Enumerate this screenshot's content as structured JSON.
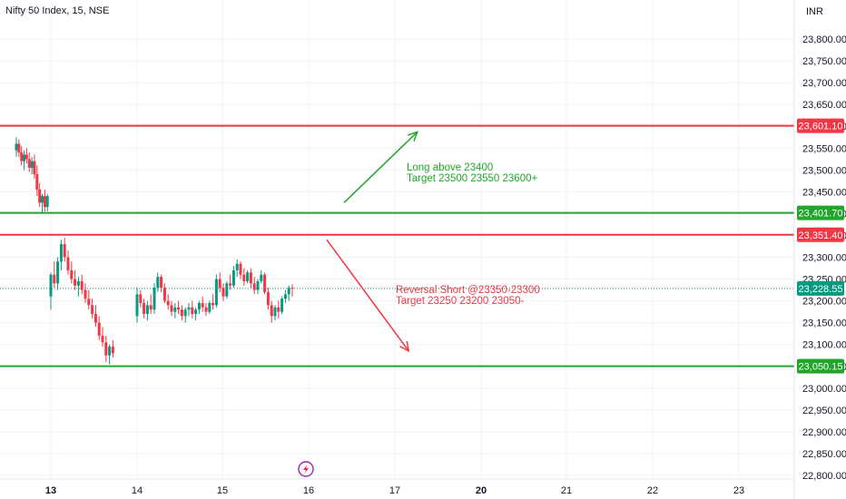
{
  "header": {
    "title": "Nifty 50 Index, 15, NSE",
    "currency": "INR"
  },
  "colors": {
    "up": "#089981",
    "down": "#f23645",
    "level_red": "#f23645",
    "level_green": "#22a52b",
    "grid": "#f0f3fa",
    "axis_text": "#131722"
  },
  "icons": {
    "bottom_marker": "lightning-bolt-icon"
  },
  "chart_data": {
    "type": "candlestick",
    "y_axis": {
      "range": [
        22780,
        23850
      ],
      "ticks": [
        "23,800.00",
        "23,750.00",
        "23,700.00",
        "23,650.00",
        "23,600.00",
        "23,550.00",
        "23,500.00",
        "23,450.00",
        "23,400.00",
        "23,350.00",
        "23,300.00",
        "23,250.00",
        "23,200.00",
        "23,150.00",
        "23,100.00",
        "23,050.00",
        "23,000.00",
        "22,950.00",
        "22,900.00",
        "22,850.00",
        "22,800.00"
      ],
      "tick_values": [
        23800,
        23750,
        23700,
        23650,
        23600,
        23550,
        23500,
        23450,
        23400,
        23350,
        23300,
        23250,
        23200,
        23150,
        23100,
        23050,
        23000,
        22950,
        22900,
        22850,
        22800
      ]
    },
    "x_axis": {
      "labels": [
        {
          "text": "13",
          "bold": true
        },
        {
          "text": "14",
          "bold": false
        },
        {
          "text": "15",
          "bold": false
        },
        {
          "text": "16",
          "bold": false
        },
        {
          "text": "17",
          "bold": false
        },
        {
          "text": "20",
          "bold": true
        },
        {
          "text": "21",
          "bold": false
        },
        {
          "text": "22",
          "bold": false
        },
        {
          "text": "23",
          "bold": false
        }
      ]
    },
    "levels": [
      {
        "value": 23601.1,
        "label": "23,601.10",
        "color": "red"
      },
      {
        "value": 23401.7,
        "label": "23,401.70",
        "color": "green"
      },
      {
        "value": 23351.4,
        "label": "23,351.40",
        "color": "red"
      },
      {
        "value": 23050.15,
        "label": "23,050.15",
        "color": "green"
      }
    ],
    "last_price": {
      "value": 23228.55,
      "label": "23,228.55"
    },
    "annotations": [
      {
        "lines": [
          "Long above 23400",
          "Target 23500 23550 23600+"
        ],
        "color": "green"
      },
      {
        "lines": [
          "Reversal Short @23350-23300",
          "Target 23250 23200 23050-"
        ],
        "color": "red"
      }
    ],
    "arrows": [
      {
        "from": [
          16.4,
          23425
        ],
        "to": [
          17.25,
          23587
        ],
        "color": "green"
      },
      {
        "from": [
          16.2,
          23340
        ],
        "to": [
          17.15,
          23085
        ],
        "color": "red"
      }
    ],
    "candles": [
      [
        12.6,
        23545,
        23575,
        23530,
        23560
      ],
      [
        12.63,
        23560,
        23570,
        23530,
        23540
      ],
      [
        12.66,
        23540,
        23555,
        23510,
        23520
      ],
      [
        12.69,
        23520,
        23545,
        23500,
        23535
      ],
      [
        12.72,
        23535,
        23550,
        23515,
        23525
      ],
      [
        12.75,
        23525,
        23540,
        23495,
        23505
      ],
      [
        12.78,
        23505,
        23530,
        23490,
        23520
      ],
      [
        12.81,
        23520,
        23535,
        23480,
        23490
      ],
      [
        12.84,
        23490,
        23510,
        23440,
        23455
      ],
      [
        12.87,
        23455,
        23470,
        23415,
        23425
      ],
      [
        12.9,
        23425,
        23445,
        23400,
        23440
      ],
      [
        12.93,
        23440,
        23455,
        23405,
        23415
      ],
      [
        12.96,
        23415,
        23445,
        23405,
        23440
      ],
      [
        13.0,
        23210,
        23265,
        23180,
        23260
      ],
      [
        13.04,
        23260,
        23290,
        23230,
        23240
      ],
      [
        13.08,
        23240,
        23300,
        23225,
        23290
      ],
      [
        13.12,
        23290,
        23340,
        23270,
        23330
      ],
      [
        13.16,
        23330,
        23345,
        23290,
        23300
      ],
      [
        13.2,
        23300,
        23315,
        23260,
        23270
      ],
      [
        13.24,
        23270,
        23290,
        23240,
        23250
      ],
      [
        13.28,
        23250,
        23270,
        23225,
        23235
      ],
      [
        13.32,
        23235,
        23255,
        23210,
        23245
      ],
      [
        13.36,
        23245,
        23260,
        23215,
        23225
      ],
      [
        13.4,
        23225,
        23240,
        23195,
        23205
      ],
      [
        13.44,
        23205,
        23225,
        23180,
        23190
      ],
      [
        13.48,
        23190,
        23205,
        23160,
        23170
      ],
      [
        13.52,
        23170,
        23190,
        23140,
        23150
      ],
      [
        13.56,
        23150,
        23165,
        23110,
        23120
      ],
      [
        13.6,
        23120,
        23140,
        23095,
        23105
      ],
      [
        13.64,
        23105,
        23120,
        23060,
        23075
      ],
      [
        13.68,
        23075,
        23100,
        23055,
        23095
      ],
      [
        13.72,
        23095,
        23110,
        23070,
        23080
      ],
      [
        14.0,
        23165,
        23230,
        23150,
        23215
      ],
      [
        14.04,
        23215,
        23225,
        23185,
        23195
      ],
      [
        14.08,
        23195,
        23205,
        23160,
        23170
      ],
      [
        14.12,
        23170,
        23200,
        23155,
        23190
      ],
      [
        14.16,
        23190,
        23215,
        23170,
        23180
      ],
      [
        14.2,
        23180,
        23240,
        23170,
        23230
      ],
      [
        14.24,
        23230,
        23265,
        23220,
        23255
      ],
      [
        14.28,
        23255,
        23260,
        23220,
        23230
      ],
      [
        14.32,
        23230,
        23240,
        23195,
        23200
      ],
      [
        14.36,
        23200,
        23215,
        23180,
        23190
      ],
      [
        14.4,
        23190,
        23200,
        23165,
        23175
      ],
      [
        14.44,
        23175,
        23195,
        23160,
        23185
      ],
      [
        14.48,
        23185,
        23200,
        23170,
        23180
      ],
      [
        14.52,
        23180,
        23190,
        23155,
        23165
      ],
      [
        14.56,
        23165,
        23185,
        23150,
        23180
      ],
      [
        14.6,
        23180,
        23195,
        23165,
        23185
      ],
      [
        14.64,
        23185,
        23200,
        23160,
        23170
      ],
      [
        14.68,
        23170,
        23185,
        23155,
        23180
      ],
      [
        14.72,
        23180,
        23200,
        23170,
        23195
      ],
      [
        14.76,
        23195,
        23210,
        23175,
        23185
      ],
      [
        14.8,
        23185,
        23195,
        23165,
        23175
      ],
      [
        14.84,
        23175,
        23200,
        23170,
        23195
      ],
      [
        14.88,
        23195,
        23215,
        23180,
        23190
      ],
      [
        14.92,
        23190,
        23260,
        23185,
        23250
      ],
      [
        14.96,
        23250,
        23265,
        23220,
        23230
      ],
      [
        15.0,
        23230,
        23240,
        23200,
        23210
      ],
      [
        15.04,
        23210,
        23245,
        23205,
        23240
      ],
      [
        15.08,
        23240,
        23260,
        23225,
        23235
      ],
      [
        15.12,
        23235,
        23280,
        23230,
        23270
      ],
      [
        15.16,
        23270,
        23295,
        23255,
        23285
      ],
      [
        15.2,
        23285,
        23290,
        23250,
        23260
      ],
      [
        15.24,
        23260,
        23275,
        23235,
        23245
      ],
      [
        15.28,
        23245,
        23270,
        23240,
        23265
      ],
      [
        15.32,
        23265,
        23275,
        23230,
        23240
      ],
      [
        15.36,
        23240,
        23255,
        23215,
        23225
      ],
      [
        15.4,
        23225,
        23250,
        23215,
        23245
      ],
      [
        15.44,
        23245,
        23270,
        23240,
        23260
      ],
      [
        15.48,
        23260,
        23265,
        23215,
        23220
      ],
      [
        15.52,
        23220,
        23230,
        23180,
        23190
      ],
      [
        15.56,
        23190,
        23200,
        23150,
        23165
      ],
      [
        15.6,
        23165,
        23190,
        23155,
        23185
      ],
      [
        15.64,
        23185,
        23200,
        23160,
        23175
      ],
      [
        15.68,
        23175,
        23210,
        23170,
        23205
      ],
      [
        15.72,
        23205,
        23225,
        23195,
        23215
      ],
      [
        15.76,
        23215,
        23235,
        23200,
        23230
      ],
      [
        15.8,
        23230,
        23238,
        23210,
        23228
      ]
    ]
  }
}
